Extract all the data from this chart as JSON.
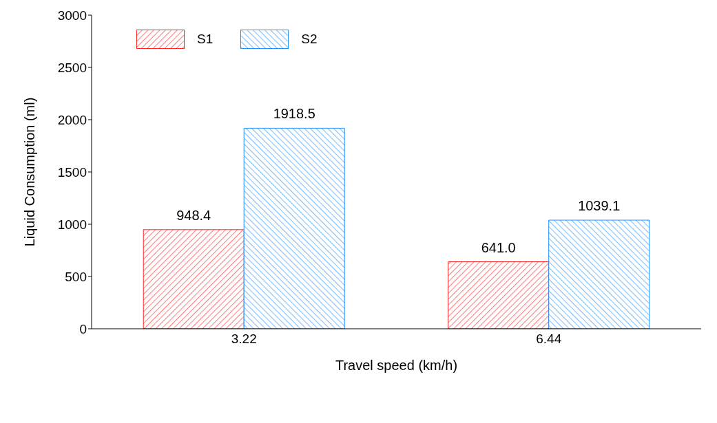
{
  "chart_data": {
    "type": "bar",
    "xlabel": "Travel speed (km/h)",
    "ylabel": "Liquid Consumption (ml)",
    "categories": [
      "3.22",
      "6.44"
    ],
    "series": [
      {
        "name": "S1",
        "color": "#ff2020",
        "values": [
          948.4,
          641.0
        ],
        "value_labels": [
          "948.4",
          "641.0"
        ]
      },
      {
        "name": "S2",
        "color": "#1e8fff",
        "values": [
          1918.5,
          1039.1
        ],
        "value_labels": [
          "1918.5",
          "1039.1"
        ]
      }
    ],
    "ylim": [
      0,
      3000
    ],
    "yticks": [
      0,
      500,
      1000,
      1500,
      2000,
      2500,
      3000
    ],
    "grid": false,
    "legend": "top left"
  }
}
